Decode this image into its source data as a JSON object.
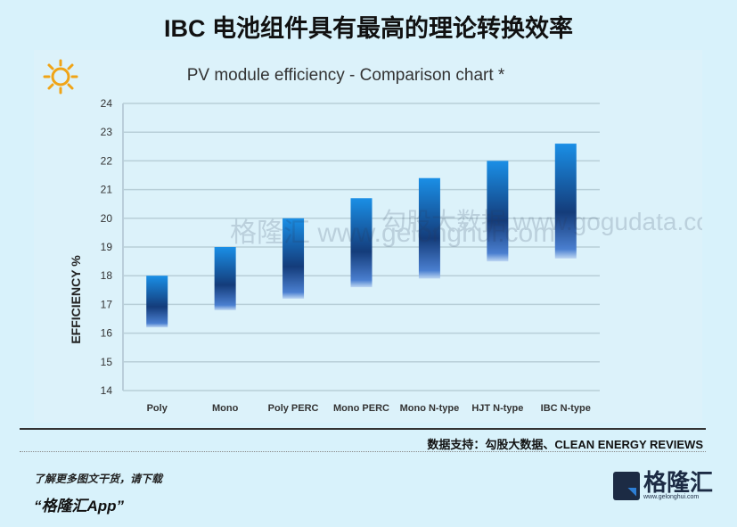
{
  "page_title": "IBC 电池组件具有最高的理论转换效率",
  "source": "数据支持：勾股大数据、CLEAN ENERGY REVIEWS",
  "promo": {
    "line1": "了解更多图文干货，请下载",
    "line2": "“格隆汇App”"
  },
  "logo": {
    "name": "格隆汇",
    "url": "www.gelonghui.com"
  },
  "watermark": [
    "格隆汇 www.gelonghui.com",
    "勾股大数据 www.gogudata.com"
  ],
  "icons": {
    "decoration": "sun-icon"
  },
  "chart_data": {
    "type": "bar",
    "subtype": "floating-range",
    "title": "PV module efficiency - Comparison chart *",
    "xlabel": "",
    "ylabel": "EFFICIENCY %",
    "ylim": [
      14,
      24
    ],
    "yticks": [
      14,
      15,
      16,
      17,
      18,
      19,
      20,
      21,
      22,
      23,
      24
    ],
    "grid": true,
    "categories": [
      "Poly",
      "Mono",
      "Poly PERC",
      "Mono PERC",
      "Mono N-type",
      "HJT N-type",
      "IBC N-type"
    ],
    "low": [
      16.2,
      16.8,
      17.2,
      17.6,
      17.9,
      18.5,
      18.6
    ],
    "high": [
      18.0,
      19.0,
      20.0,
      20.7,
      21.4,
      22.0,
      22.6
    ],
    "colors": {
      "top": "#1a8fe6",
      "mid": "#143c7a",
      "bottom": "#4a7fd0"
    }
  }
}
